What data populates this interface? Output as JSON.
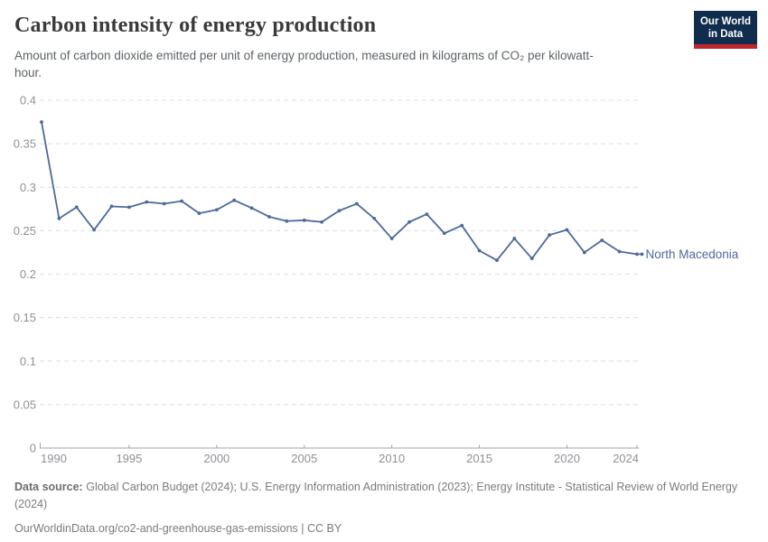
{
  "header": {
    "title": "Carbon intensity of energy production",
    "subtitle": "Amount of carbon dioxide emitted per unit of energy production, measured in kilograms of CO₂ per kilowatt-hour."
  },
  "logo": {
    "line1": "Our World",
    "line2": "in Data",
    "bg_color": "#102d4e",
    "accent_color": "#c0272c"
  },
  "chart_data": {
    "type": "line",
    "title": "Carbon intensity of energy production",
    "xlabel": "",
    "ylabel": "",
    "xlim": [
      1990,
      2024
    ],
    "ylim": [
      0,
      0.4
    ],
    "grid": "horizontal-dashed",
    "legend_position": "end-of-line-label",
    "x": [
      1990,
      1991,
      1992,
      1993,
      1994,
      1995,
      1996,
      1997,
      1998,
      1999,
      2000,
      2001,
      2002,
      2003,
      2004,
      2005,
      2006,
      2007,
      2008,
      2009,
      2010,
      2011,
      2012,
      2013,
      2014,
      2015,
      2016,
      2017,
      2018,
      2019,
      2020,
      2021,
      2022,
      2023,
      2024
    ],
    "series": [
      {
        "name": "North Macedonia",
        "color": "#4C6A9C",
        "values": [
          0.375,
          0.264,
          0.277,
          0.251,
          0.278,
          0.277,
          0.283,
          0.281,
          0.284,
          0.27,
          0.274,
          0.285,
          0.276,
          0.266,
          0.261,
          0.262,
          0.26,
          0.273,
          0.281,
          0.264,
          0.241,
          0.26,
          0.269,
          0.247,
          0.256,
          0.227,
          0.216,
          0.241,
          0.218,
          0.245,
          0.251,
          0.225,
          0.239,
          0.226,
          0.223
        ]
      }
    ],
    "x_ticks": [
      "1990",
      "1995",
      "2000",
      "2005",
      "2010",
      "2015",
      "2020",
      "2024"
    ],
    "y_ticks": [
      "0",
      "0.05",
      "0.1",
      "0.15",
      "0.2",
      "0.25",
      "0.3",
      "0.35",
      "0.4"
    ],
    "tick_color": "#8d9196",
    "grid_color": "#dedede",
    "axis_color": "#a3a3a3"
  },
  "footer": {
    "source_label": "Data source:",
    "source_text": "Global Carbon Budget (2024); U.S. Energy Information Administration (2023); Energy Institute - Statistical Review of World Energy (2024)",
    "link_line": "OurWorldinData.org/co2-and-greenhouse-gas-emissions | CC BY"
  }
}
